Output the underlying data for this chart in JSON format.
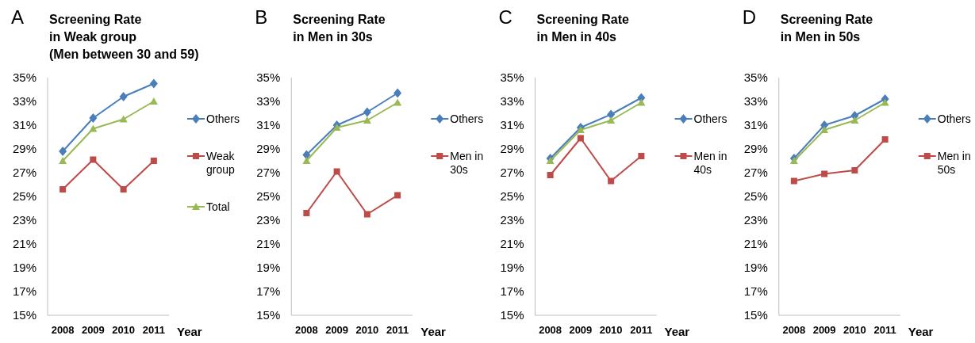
{
  "chart_data": [
    {
      "type": "line",
      "title": "Screening Rate\nin Weak group\n(Men between 30 and 59)",
      "xlabel": "Year",
      "annotations": [
        "A"
      ],
      "categories": [
        "2008",
        "2009",
        "2010",
        "2011"
      ],
      "legend": "right",
      "grid": false,
      "ylim": [
        15,
        35
      ],
      "yticks": [
        {
          "value": 15,
          "label": "15%"
        },
        {
          "value": 17,
          "label": "17%"
        },
        {
          "value": 19,
          "label": "19%"
        },
        {
          "value": 21,
          "label": "21%"
        },
        {
          "value": 23,
          "label": "23%"
        },
        {
          "value": 25,
          "label": "25%"
        },
        {
          "value": 27,
          "label": "27%"
        },
        {
          "value": 29,
          "label": "29%"
        },
        {
          "value": 31,
          "label": "31%"
        },
        {
          "value": 33,
          "label": "33%"
        },
        {
          "value": 35,
          "label": "35%"
        }
      ],
      "series": [
        {
          "name": "Others",
          "color": "#4a7ebb",
          "marker": "diamond",
          "values": [
            28.8,
            31.6,
            33.4,
            34.5
          ]
        },
        {
          "name": "Weak group",
          "color": "#be4b48",
          "marker": "square",
          "values": [
            25.6,
            28.1,
            25.6,
            28.0
          ]
        },
        {
          "name": "Total",
          "color": "#98b954",
          "marker": "triangle",
          "values": [
            28.0,
            30.7,
            31.5,
            33.0
          ]
        }
      ]
    },
    {
      "type": "line",
      "title": "Screening Rate\nin Men in 30s",
      "xlabel": "Year",
      "annotations": [
        "B"
      ],
      "categories": [
        "2008",
        "2009",
        "2010",
        "2011"
      ],
      "legend": "right",
      "grid": false,
      "ylim": [
        15,
        35
      ],
      "yticks": [
        {
          "value": 15,
          "label": "15%"
        },
        {
          "value": 17,
          "label": "17%"
        },
        {
          "value": 19,
          "label": "19%"
        },
        {
          "value": 21,
          "label": "21%"
        },
        {
          "value": 23,
          "label": "23%"
        },
        {
          "value": 25,
          "label": "25%"
        },
        {
          "value": 27,
          "label": "27%"
        },
        {
          "value": 29,
          "label": "29%"
        },
        {
          "value": 31,
          "label": "31%"
        },
        {
          "value": 33,
          "label": "33%"
        },
        {
          "value": 35,
          "label": "35%"
        }
      ],
      "series": [
        {
          "name": "Others",
          "color": "#4a7ebb",
          "marker": "diamond",
          "values": [
            28.5,
            31.0,
            32.1,
            33.7
          ]
        },
        {
          "name": "Men in 30s",
          "color": "#be4b48",
          "marker": "square",
          "values": [
            23.6,
            27.1,
            23.5,
            25.1
          ]
        },
        {
          "color": "#98b954",
          "marker": "triangle",
          "values": [
            28.0,
            30.8,
            31.4,
            32.9
          ]
        }
      ]
    },
    {
      "type": "line",
      "title": "Screening Rate\nin Men in 40s",
      "xlabel": "Year",
      "annotations": [
        "C"
      ],
      "categories": [
        "2008",
        "2009",
        "2010",
        "2011"
      ],
      "legend": "right",
      "grid": false,
      "ylim": [
        15,
        35
      ],
      "yticks": [
        {
          "value": 15,
          "label": "15%"
        },
        {
          "value": 17,
          "label": "17%"
        },
        {
          "value": 19,
          "label": "19%"
        },
        {
          "value": 21,
          "label": "21%"
        },
        {
          "value": 23,
          "label": "23%"
        },
        {
          "value": 25,
          "label": "25%"
        },
        {
          "value": 27,
          "label": "27%"
        },
        {
          "value": 29,
          "label": "29%"
        },
        {
          "value": 31,
          "label": "31%"
        },
        {
          "value": 33,
          "label": "33%"
        },
        {
          "value": 35,
          "label": "35%"
        }
      ],
      "series": [
        {
          "name": "Others",
          "color": "#4a7ebb",
          "marker": "diamond",
          "values": [
            28.2,
            30.8,
            31.9,
            33.3
          ]
        },
        {
          "name": "Men in 40s",
          "color": "#be4b48",
          "marker": "square",
          "values": [
            26.8,
            29.9,
            26.3,
            28.4
          ]
        },
        {
          "color": "#98b954",
          "marker": "triangle",
          "values": [
            28.0,
            30.6,
            31.4,
            32.9
          ]
        }
      ]
    },
    {
      "type": "line",
      "title": "Screening Rate\nin Men in 50s",
      "xlabel": "Year",
      "annotations": [
        "D"
      ],
      "categories": [
        "2008",
        "2009",
        "2010",
        "2011"
      ],
      "legend": "right",
      "grid": false,
      "ylim": [
        15,
        35
      ],
      "yticks": [
        {
          "value": 15,
          "label": "15%"
        },
        {
          "value": 17,
          "label": "17%"
        },
        {
          "value": 19,
          "label": "19%"
        },
        {
          "value": 21,
          "label": "21%"
        },
        {
          "value": 23,
          "label": "23%"
        },
        {
          "value": 25,
          "label": "25%"
        },
        {
          "value": 27,
          "label": "27%"
        },
        {
          "value": 29,
          "label": "29%"
        },
        {
          "value": 31,
          "label": "31%"
        },
        {
          "value": 33,
          "label": "33%"
        },
        {
          "value": 35,
          "label": "35%"
        }
      ],
      "series": [
        {
          "name": "Others",
          "color": "#4a7ebb",
          "marker": "diamond",
          "values": [
            28.2,
            31.0,
            31.8,
            33.2
          ]
        },
        {
          "name": "Men in 50s",
          "color": "#be4b48",
          "marker": "square",
          "values": [
            26.3,
            26.9,
            27.2,
            29.8
          ]
        },
        {
          "color": "#98b954",
          "marker": "triangle",
          "values": [
            28.0,
            30.6,
            31.4,
            32.9
          ]
        }
      ]
    }
  ]
}
